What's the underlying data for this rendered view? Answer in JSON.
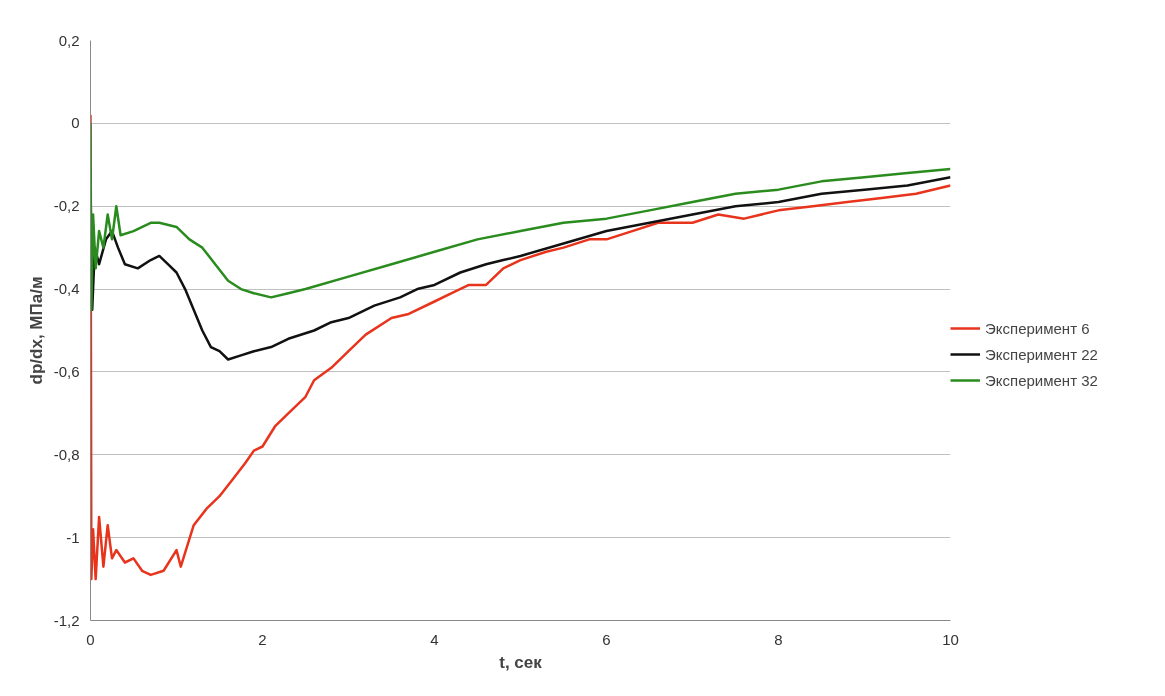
{
  "chart_data": {
    "type": "line",
    "xlabel": "t, сек",
    "ylabel": "dp/dx, МПа/м",
    "xlim": [
      0,
      10
    ],
    "xticks": [
      0,
      2,
      4,
      6,
      8,
      10
    ],
    "ylim": [
      -1.2,
      0.2
    ],
    "yticks": [
      {
        "value": -1.2,
        "label": "-1,2"
      },
      {
        "value": -1.0,
        "label": "-1"
      },
      {
        "value": -0.8,
        "label": "-0,8"
      },
      {
        "value": -0.6,
        "label": "-0,6"
      },
      {
        "value": -0.4,
        "label": "-0,4"
      },
      {
        "value": -0.2,
        "label": "-0,2"
      },
      {
        "value": 0,
        "label": "0"
      },
      {
        "value": 0.2,
        "label": "0,2"
      }
    ],
    "grid": "y",
    "legend": "right",
    "marker": "none",
    "line_style": "solid",
    "series": [
      {
        "name": "Эксперимент 6",
        "color": "#e8341c",
        "x": [
          0,
          0.01,
          0.03,
          0.06,
          0.1,
          0.15,
          0.2,
          0.25,
          0.3,
          0.4,
          0.5,
          0.6,
          0.7,
          0.85,
          1.0,
          1.05,
          1.2,
          1.35,
          1.5,
          1.65,
          1.8,
          1.9,
          2.0,
          2.15,
          2.3,
          2.5,
          2.6,
          2.8,
          3.0,
          3.2,
          3.5,
          3.7,
          4.0,
          4.2,
          4.4,
          4.6,
          4.8,
          5.0,
          5.3,
          5.5,
          5.8,
          6.0,
          6.3,
          6.6,
          7.0,
          7.3,
          7.6,
          8.0,
          8.4,
          8.8,
          9.2,
          9.6,
          10.0
        ],
        "values": [
          0.02,
          -1.1,
          -0.98,
          -1.1,
          -0.95,
          -1.07,
          -0.97,
          -1.05,
          -1.03,
          -1.06,
          -1.05,
          -1.08,
          -1.09,
          -1.08,
          -1.03,
          -1.07,
          -0.97,
          -0.93,
          -0.9,
          -0.86,
          -0.82,
          -0.79,
          -0.78,
          -0.73,
          -0.7,
          -0.66,
          -0.62,
          -0.59,
          -0.55,
          -0.51,
          -0.47,
          -0.46,
          -0.43,
          -0.41,
          -0.39,
          -0.39,
          -0.35,
          -0.33,
          -0.31,
          -0.3,
          -0.28,
          -0.28,
          -0.26,
          -0.24,
          -0.24,
          -0.22,
          -0.23,
          -0.21,
          -0.2,
          -0.19,
          -0.18,
          -0.17,
          -0.15
        ]
      },
      {
        "name": "Эксперимент 22",
        "color": "#111111",
        "x": [
          0,
          0.02,
          0.05,
          0.1,
          0.18,
          0.25,
          0.32,
          0.4,
          0.55,
          0.7,
          0.8,
          0.9,
          1.0,
          1.1,
          1.2,
          1.3,
          1.4,
          1.5,
          1.6,
          1.75,
          1.9,
          2.1,
          2.3,
          2.6,
          2.8,
          3.0,
          3.3,
          3.6,
          3.8,
          4.0,
          4.3,
          4.6,
          4.8,
          5.0,
          5.5,
          6.0,
          6.5,
          7.0,
          7.5,
          8.0,
          8.5,
          9.0,
          9.5,
          10.0
        ],
        "values": [
          -0.15,
          -0.45,
          -0.3,
          -0.34,
          -0.28,
          -0.26,
          -0.3,
          -0.34,
          -0.35,
          -0.33,
          -0.32,
          -0.34,
          -0.36,
          -0.4,
          -0.45,
          -0.5,
          -0.54,
          -0.55,
          -0.57,
          -0.56,
          -0.55,
          -0.54,
          -0.52,
          -0.5,
          -0.48,
          -0.47,
          -0.44,
          -0.42,
          -0.4,
          -0.39,
          -0.36,
          -0.34,
          -0.33,
          -0.32,
          -0.29,
          -0.26,
          -0.24,
          -0.22,
          -0.2,
          -0.19,
          -0.17,
          -0.16,
          -0.15,
          -0.13
        ]
      },
      {
        "name": "Эксперимент 32",
        "color": "#2a8c1e",
        "x": [
          0,
          0.01,
          0.03,
          0.06,
          0.1,
          0.15,
          0.2,
          0.25,
          0.3,
          0.35,
          0.5,
          0.7,
          0.8,
          1.0,
          1.15,
          1.3,
          1.45,
          1.6,
          1.75,
          1.9,
          2.1,
          2.3,
          2.5,
          3.0,
          3.5,
          4.0,
          4.5,
          5.0,
          5.5,
          6.0,
          6.5,
          7.0,
          7.5,
          8.0,
          8.5,
          9.0,
          9.5,
          10.0
        ],
        "values": [
          0.0,
          -0.45,
          -0.22,
          -0.35,
          -0.26,
          -0.3,
          -0.22,
          -0.28,
          -0.2,
          -0.27,
          -0.26,
          -0.24,
          -0.24,
          -0.25,
          -0.28,
          -0.3,
          -0.34,
          -0.38,
          -0.4,
          -0.41,
          -0.42,
          -0.41,
          -0.4,
          -0.37,
          -0.34,
          -0.31,
          -0.28,
          -0.26,
          -0.24,
          -0.23,
          -0.21,
          -0.19,
          -0.17,
          -0.16,
          -0.14,
          -0.13,
          -0.12,
          -0.11
        ]
      }
    ]
  }
}
